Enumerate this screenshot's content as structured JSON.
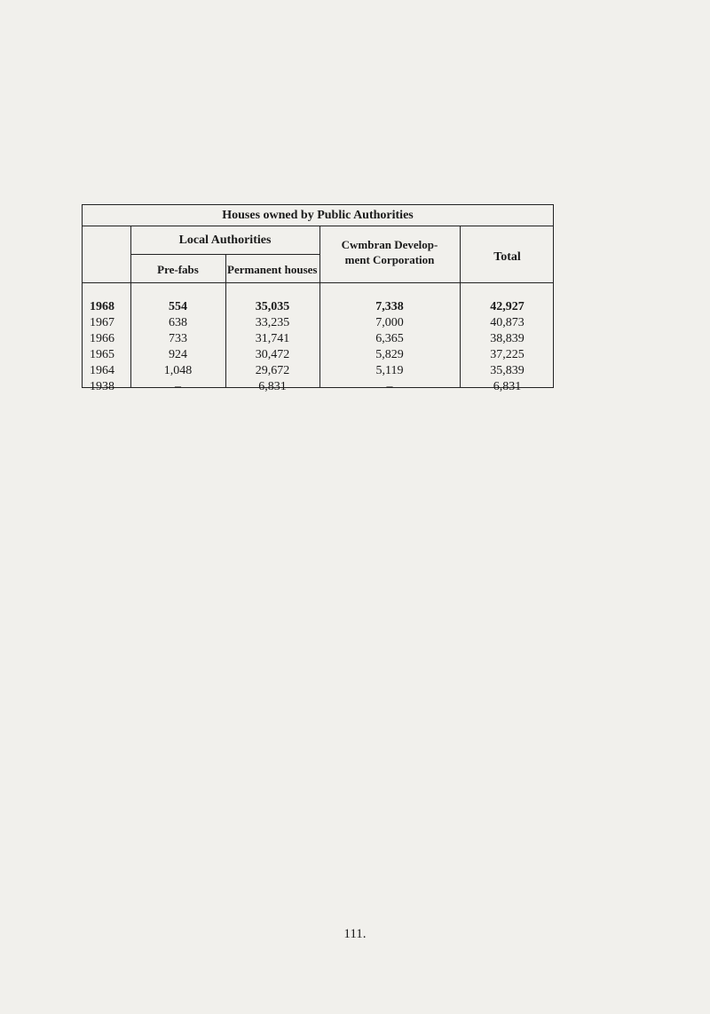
{
  "table": {
    "title": "Houses owned by Public Authorities",
    "group_header": "Local Authorities",
    "columns": [
      "Pre-fabs",
      "Permanent houses",
      "Cwmbran Develop-\nment Corporation",
      "Total"
    ],
    "cwmbran_line1": "Cwmbran Develop-",
    "cwmbran_line2": "ment Corporation",
    "rows": [
      {
        "year": "1968",
        "prefabs": "554",
        "permanent": "35,035",
        "cwmbran": "7,338",
        "total": "42,927"
      },
      {
        "year": "1967",
        "prefabs": "638",
        "permanent": "33,235",
        "cwmbran": "7,000",
        "total": "40,873"
      },
      {
        "year": "1966",
        "prefabs": "733",
        "permanent": "31,741",
        "cwmbran": "6,365",
        "total": "38,839"
      },
      {
        "year": "1965",
        "prefabs": "924",
        "permanent": "30,472",
        "cwmbran": "5,829",
        "total": "37,225"
      },
      {
        "year": "1964",
        "prefabs": "1,048",
        "permanent": "29,672",
        "cwmbran": "5,119",
        "total": "35,839"
      },
      {
        "year": "1938",
        "prefabs": "–",
        "permanent": "6,831",
        "cwmbran": "–",
        "total": "6,831"
      }
    ]
  },
  "page_number": "111."
}
